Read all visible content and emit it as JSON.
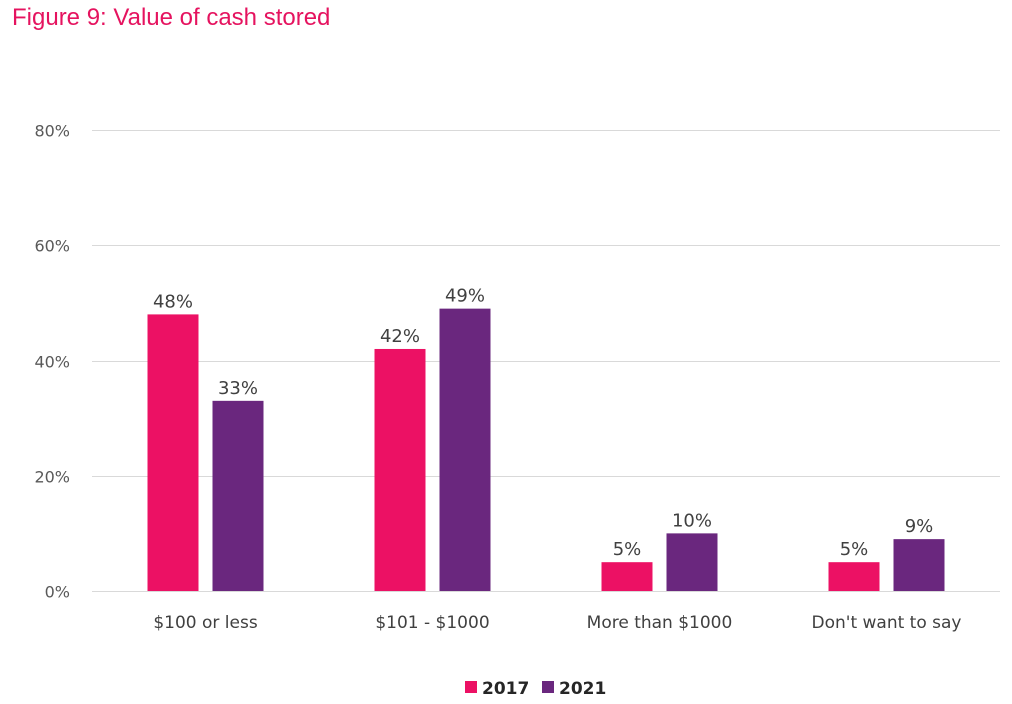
{
  "title": "Figure 9: Value of cash stored",
  "chart_data": {
    "type": "bar",
    "title": "Figure 9: Value of cash stored",
    "categories": [
      "$100 or less",
      "$101 - $1000",
      "More than $1000",
      "Don't want to say"
    ],
    "series": [
      {
        "name": "2017",
        "values": [
          48,
          42,
          5,
          5
        ],
        "labels": [
          "48%",
          "42%",
          "5%",
          "5%"
        ],
        "color": "#ec1164"
      },
      {
        "name": "2021",
        "values": [
          33,
          49,
          10,
          9
        ],
        "labels": [
          "33%",
          "49%",
          "10%",
          "9%"
        ],
        "color": "#6a277e"
      }
    ],
    "ylim": [
      0,
      80
    ],
    "yticks": [
      0,
      20,
      40,
      60,
      80
    ],
    "ytick_labels": [
      "0%",
      "20%",
      "40%",
      "60%",
      "80%"
    ],
    "grid": true,
    "legend": "bottom-center",
    "xlabel": "",
    "ylabel": ""
  }
}
